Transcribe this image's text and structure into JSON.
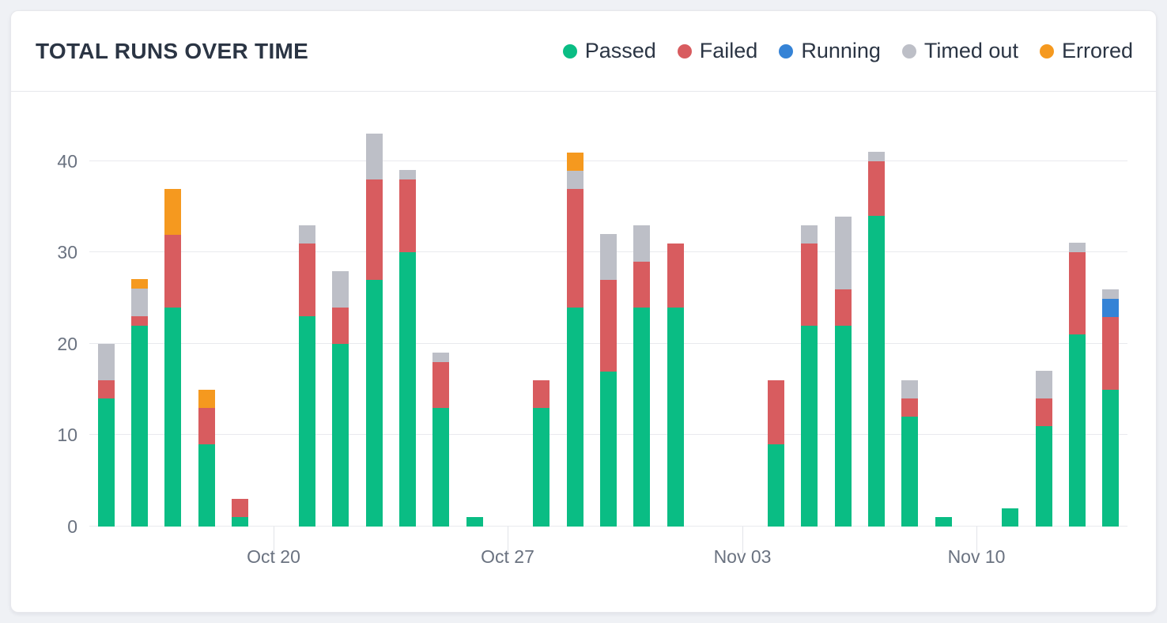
{
  "card": {
    "title": "TOTAL RUNS OVER TIME"
  },
  "legend": {
    "items": [
      {
        "key": "passed",
        "label": "Passed",
        "color": "#0ABD84"
      },
      {
        "key": "failed",
        "label": "Failed",
        "color": "#D85C5F"
      },
      {
        "key": "running",
        "label": "Running",
        "color": "#3583D6"
      },
      {
        "key": "timed_out",
        "label": "Timed out",
        "color": "#BDBFC7"
      },
      {
        "key": "errored",
        "label": "Errored",
        "color": "#F5991F"
      }
    ]
  },
  "chart_data": {
    "type": "bar",
    "stacked": true,
    "title": "TOTAL RUNS OVER TIME",
    "xlabel": "",
    "ylabel": "",
    "ylim": [
      0,
      45
    ],
    "y_ticks": [
      0,
      10,
      20,
      30,
      40
    ],
    "grid": "horizontal",
    "legend_position": "top-right",
    "legend_entries": [
      "Passed",
      "Failed",
      "Running",
      "Timed out",
      "Errored"
    ],
    "series_order": [
      "passed",
      "failed",
      "running",
      "timed_out",
      "errored"
    ],
    "colors": {
      "passed": "#0ABD84",
      "failed": "#D85C5F",
      "running": "#3583D6",
      "timed_out": "#BDBFC7",
      "errored": "#F5991F"
    },
    "x_tick_labels": [
      "Oct 20",
      "Oct 27",
      "Nov 03",
      "Nov 10"
    ],
    "x_ticks": [
      {
        "label": "Oct 20",
        "slot": 5
      },
      {
        "label": "Oct 27",
        "slot": 12
      },
      {
        "label": "Nov 03",
        "slot": 19
      },
      {
        "label": "Nov 10",
        "slot": 26
      }
    ],
    "num_slots": 31,
    "days": [
      {
        "passed": 14,
        "failed": 2,
        "timed_out": 4
      },
      {
        "passed": 22,
        "failed": 1,
        "timed_out": 3,
        "errored": 1
      },
      {
        "passed": 24,
        "failed": 8,
        "errored": 5
      },
      {
        "passed": 9,
        "failed": 4,
        "errored": 2
      },
      {
        "passed": 1,
        "failed": 2
      },
      {},
      {
        "passed": 23,
        "failed": 8,
        "timed_out": 2
      },
      {
        "passed": 20,
        "failed": 4,
        "timed_out": 4
      },
      {
        "passed": 27,
        "failed": 11,
        "timed_out": 5
      },
      {
        "passed": 30,
        "failed": 8,
        "timed_out": 1
      },
      {
        "passed": 13,
        "failed": 5,
        "timed_out": 1
      },
      {
        "passed": 1
      },
      {},
      {
        "passed": 13,
        "failed": 3
      },
      {
        "passed": 24,
        "failed": 13,
        "timed_out": 2,
        "errored": 2
      },
      {
        "passed": 17,
        "failed": 10,
        "timed_out": 5
      },
      {
        "passed": 24,
        "failed": 5,
        "timed_out": 4
      },
      {
        "passed": 24,
        "failed": 7
      },
      {},
      {},
      {
        "passed": 9,
        "failed": 7
      },
      {
        "passed": 22,
        "failed": 9,
        "timed_out": 2
      },
      {
        "passed": 22,
        "failed": 4,
        "timed_out": 8
      },
      {
        "passed": 34,
        "failed": 6,
        "timed_out": 1
      },
      {
        "passed": 12,
        "failed": 2,
        "timed_out": 2
      },
      {
        "passed": 1
      },
      {},
      {
        "passed": 2
      },
      {
        "passed": 11,
        "failed": 3,
        "timed_out": 3
      },
      {
        "passed": 21,
        "failed": 9,
        "timed_out": 1
      },
      {
        "passed": 15,
        "failed": 8,
        "running": 2,
        "timed_out": 1
      }
    ]
  }
}
